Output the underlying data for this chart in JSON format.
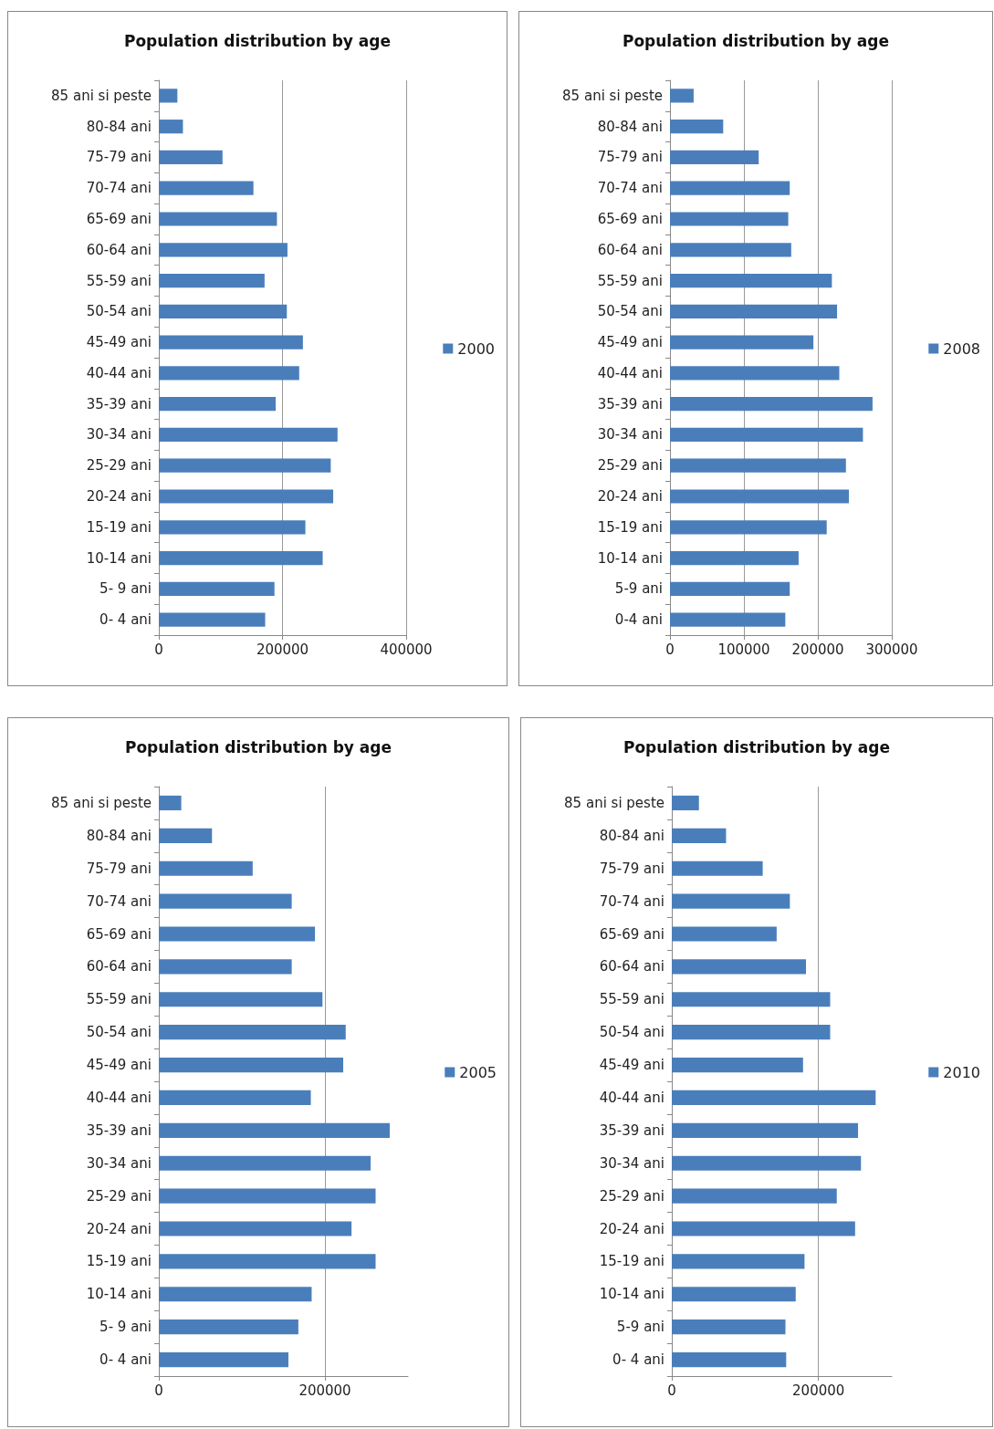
{
  "chart_data": [
    {
      "type": "bar",
      "orientation": "horizontal",
      "title": "Population distribution by age",
      "categories": [
        "85 ani si peste",
        "80-84 ani",
        "75-79 ani",
        "70-74 ani",
        "65-69 ani",
        "60-64 ani",
        "55-59 ani",
        "50-54 ani",
        "45-49 ani",
        "40-44 ani",
        "35-39 ani",
        "30-34 ani",
        "25-29 ani",
        "20-24 ani",
        "15-19 ani",
        "10-14 ani",
        "5- 9 ani",
        "0- 4 ani"
      ],
      "series": [
        {
          "name": "2000",
          "color": "#4a7ebb",
          "values": [
            30000,
            39000,
            103000,
            153000,
            191000,
            208000,
            171000,
            207000,
            233000,
            227000,
            189000,
            289000,
            278000,
            282000,
            237000,
            265000,
            187000,
            172000
          ]
        }
      ],
      "xlim": [
        0,
        400000
      ],
      "xticks": [
        0,
        200000,
        400000
      ],
      "grid": "x",
      "legend": "right"
    },
    {
      "type": "bar",
      "orientation": "horizontal",
      "title": "Population distribution by age",
      "categories": [
        "85 ani si peste",
        "80-84 ani",
        "75-79 ani",
        "70-74 ani",
        "65-69 ani",
        "60-64 ani",
        "55-59 ani",
        "50-54 ani",
        "45-49 ani",
        "40-44 ani",
        "35-39 ani",
        "30-34 ani",
        "25-29 ani",
        "20-24 ani",
        "15-19 ani",
        "10-14 ani",
        "5-9 ani",
        "0-4 ani"
      ],
      "series": [
        {
          "name": "2008",
          "color": "#4a7ebb",
          "values": [
            32000,
            72000,
            120000,
            162000,
            160000,
            164000,
            219000,
            226000,
            194000,
            229000,
            274000,
            261000,
            238000,
            242000,
            212000,
            174000,
            162000,
            156000
          ]
        }
      ],
      "xlim": [
        0,
        300000
      ],
      "xticks": [
        0,
        100000,
        200000,
        300000
      ],
      "grid": "x",
      "legend": "right"
    },
    {
      "type": "bar",
      "orientation": "horizontal",
      "title": "Population distribution by age",
      "categories": [
        "85 ani si peste",
        "80-84 ani",
        "75-79 ani",
        "70-74 ani",
        "65-69 ani",
        "60-64 ani",
        "55-59 ani",
        "50-54 ani",
        "45-49 ani",
        "40-44 ani",
        "35-39 ani",
        "30-34 ani",
        "25-29 ani",
        "20-24 ani",
        "15-19 ani",
        "10-14 ani",
        "5- 9 ani",
        "0- 4 ani"
      ],
      "series": [
        {
          "name": "2005",
          "color": "#4a7ebb",
          "values": [
            27000,
            64000,
            113000,
            160000,
            188000,
            160000,
            197000,
            225000,
            222000,
            183000,
            278000,
            255000,
            261000,
            232000,
            261000,
            184000,
            168000,
            156000
          ]
        }
      ],
      "xlim": [
        0,
        300000
      ],
      "xticks": [
        0,
        200000
      ],
      "grid": "x",
      "legend": "right"
    },
    {
      "type": "bar",
      "orientation": "horizontal",
      "title": "Population distribution by age",
      "categories": [
        "85 ani si peste",
        "80-84 ani",
        "75-79 ani",
        "70-74 ani",
        "65-69 ani",
        "60-64 ani",
        "55-59 ani",
        "50-54 ani",
        "45-49 ani",
        "40-44 ani",
        "35-39 ani",
        "30-34 ani",
        "25-29 ani",
        "20-24 ani",
        "15-19 ani",
        "10-14 ani",
        "5-9 ani",
        "0- 4 ani"
      ],
      "series": [
        {
          "name": "2010",
          "color": "#4a7ebb",
          "values": [
            37000,
            74000,
            124000,
            161000,
            143000,
            183000,
            216000,
            216000,
            179000,
            278000,
            254000,
            258000,
            225000,
            250000,
            181000,
            169000,
            155000,
            156000
          ]
        }
      ],
      "xlim": [
        0,
        300000
      ],
      "xticks": [
        0,
        200000
      ],
      "grid": "x",
      "legend": "right"
    }
  ]
}
